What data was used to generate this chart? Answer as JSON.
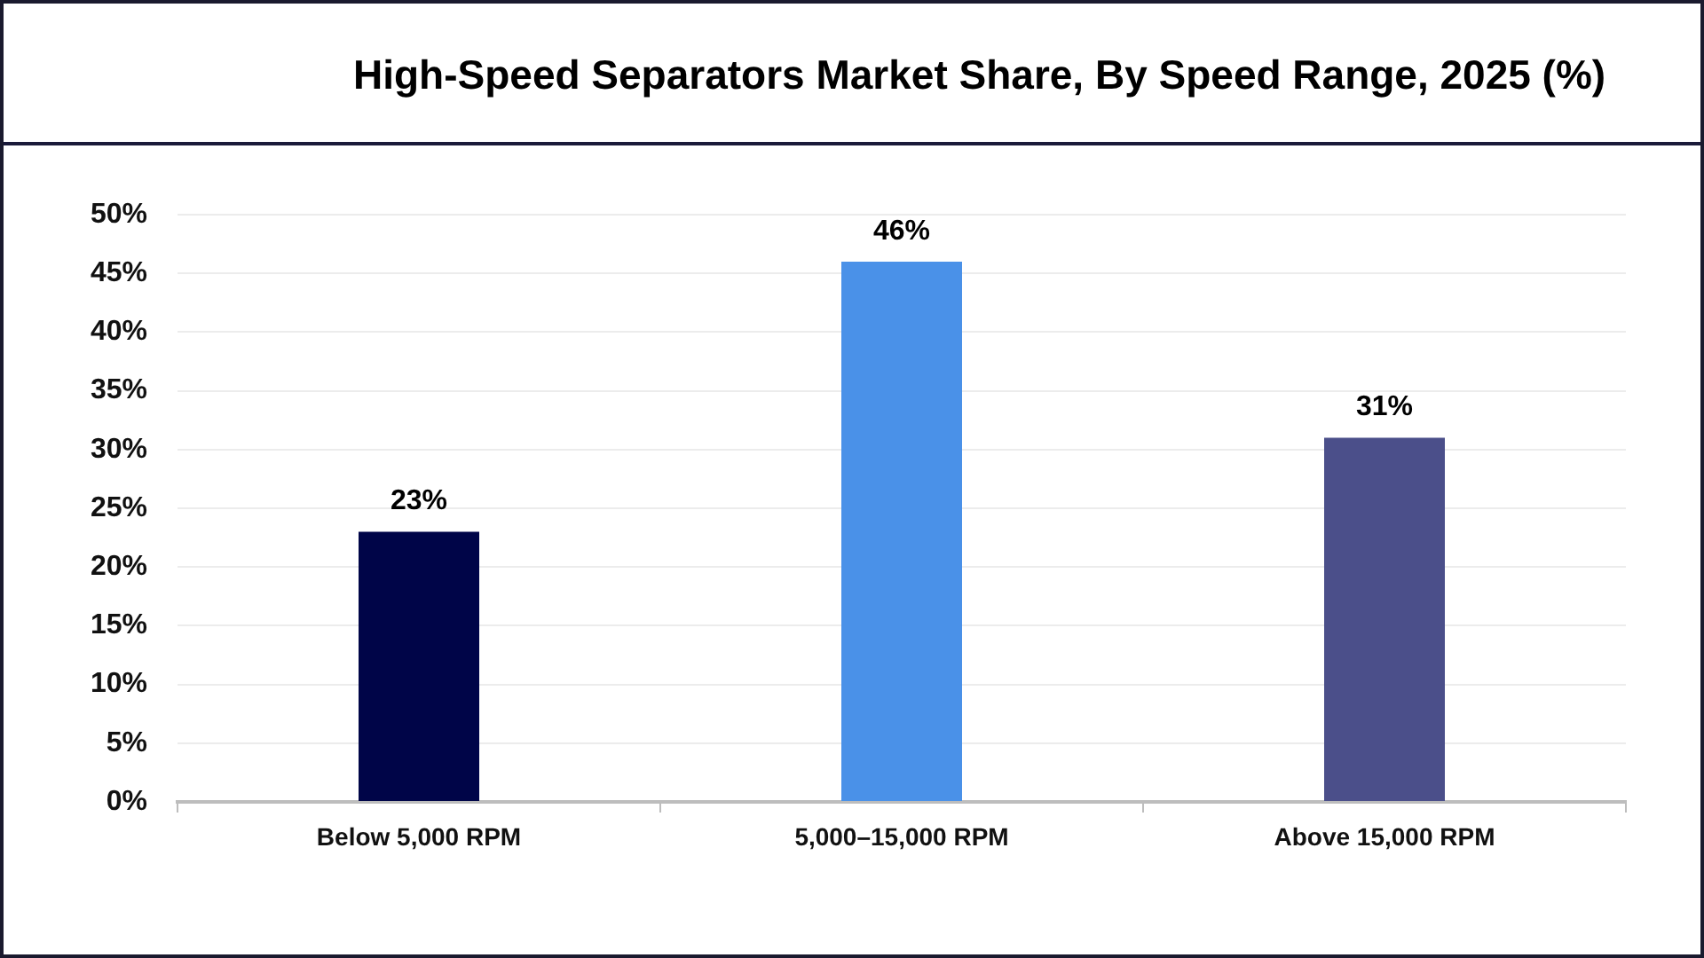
{
  "chart_data": {
    "type": "bar",
    "title": "High-Speed Separators Market Share, By Speed Range, 2025 (%)",
    "categories": [
      "Below 5,000 RPM",
      "5,000–15,000 RPM",
      "Above 15,000 RPM"
    ],
    "values": [
      23,
      46,
      31
    ],
    "colors": [
      "#000548",
      "#4a91e8",
      "#4b4f8a"
    ],
    "value_labels": [
      "23%",
      "46%",
      "31%"
    ],
    "ylim": [
      0,
      50
    ],
    "yticks": [
      {
        "value": 0,
        "label": "0%"
      },
      {
        "value": 5,
        "label": "5%"
      },
      {
        "value": 10,
        "label": "10%"
      },
      {
        "value": 15,
        "label": "15%"
      },
      {
        "value": 20,
        "label": "20%"
      },
      {
        "value": 25,
        "label": "25%"
      },
      {
        "value": 30,
        "label": "30%"
      },
      {
        "value": 35,
        "label": "35%"
      },
      {
        "value": 40,
        "label": "40%"
      },
      {
        "value": 45,
        "label": "45%"
      },
      {
        "value": 50,
        "label": "50%"
      }
    ],
    "grid": "y"
  }
}
